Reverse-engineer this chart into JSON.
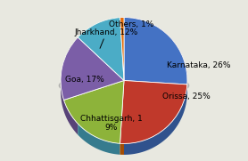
{
  "labels": [
    "Karnataka",
    "Orissa",
    "Chhattisgarh",
    "Goa",
    "Jharkhand",
    "Others"
  ],
  "values": [
    26,
    25,
    19,
    17,
    12,
    1
  ],
  "colors": [
    "#4472C4",
    "#C0392B",
    "#8DB33A",
    "#7B5EA7",
    "#4BACC6",
    "#E36C09"
  ],
  "startangle": 90,
  "shadow_color": "#888888",
  "bg_color": "#E8E8E0",
  "label_fontsize": 6.5,
  "shadow_depth": 0.08
}
